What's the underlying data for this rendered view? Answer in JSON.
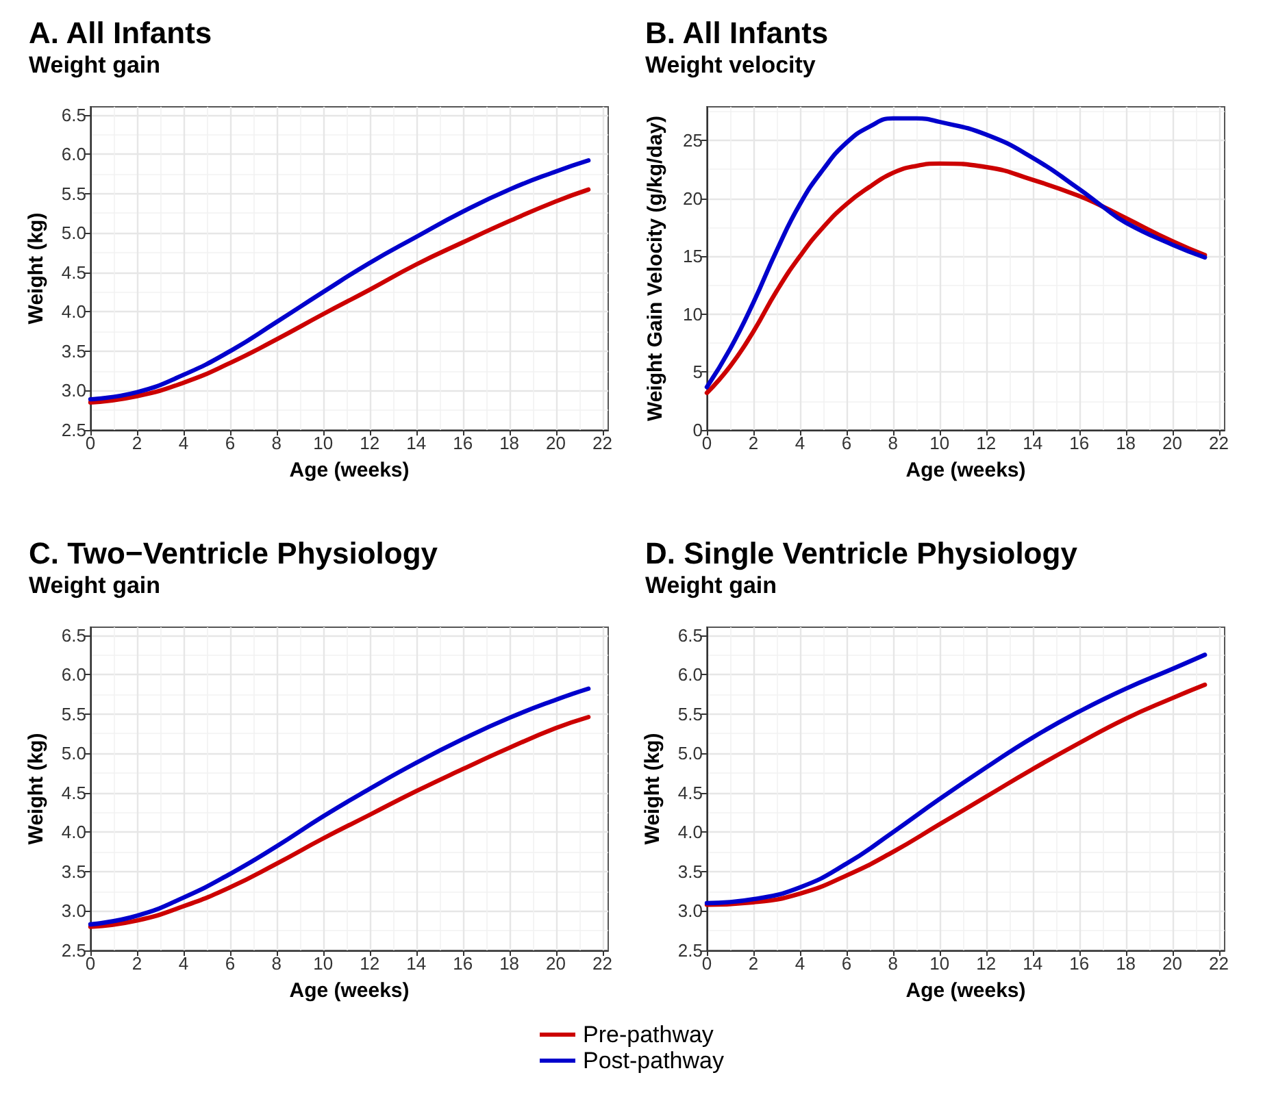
{
  "chart_data": [
    {
      "type": "line",
      "title": "A. All Infants",
      "subtitle": "Weight gain",
      "xlabel": "Age (weeks)",
      "ylabel": "Weight (kg)",
      "x": [
        0,
        2,
        4,
        6,
        8,
        10,
        12,
        14,
        16,
        18,
        20,
        21.4
      ],
      "xlim": [
        0,
        22.25
      ],
      "xticks": [
        0,
        2,
        4,
        6,
        8,
        10,
        12,
        14,
        16,
        18,
        20,
        22
      ],
      "ylim": [
        2.5,
        6.6
      ],
      "yticks": [
        2.5,
        {
          "value": 3,
          "label": "3.0"
        },
        3.5,
        {
          "value": 4,
          "label": "4.0"
        },
        4.5,
        {
          "value": 5,
          "label": "5.0"
        },
        5.5,
        {
          "value": 6,
          "label": "6.0"
        },
        6.5
      ],
      "grid": true,
      "legend": "bottom",
      "marker": "none",
      "line_style": "solid",
      "series": [
        {
          "name": "Pre-pathway",
          "color": "#cc0000",
          "values": [
            2.85,
            2.93,
            3.1,
            3.35,
            3.65,
            3.97,
            4.28,
            4.6,
            4.88,
            5.15,
            5.4,
            5.55
          ]
        },
        {
          "name": "Post-pathway",
          "color": "#0000cc",
          "values": [
            2.89,
            2.98,
            3.2,
            3.5,
            3.87,
            4.25,
            4.62,
            4.95,
            5.27,
            5.55,
            5.78,
            5.92
          ]
        }
      ]
    },
    {
      "type": "line",
      "title": "B. All Infants",
      "subtitle": "Weight velocity",
      "xlabel": "Age (weeks)",
      "ylabel": "Weight Gain Velocity (g/kg/day)",
      "x": [
        0,
        1,
        2,
        3,
        4,
        5,
        6,
        7,
        8,
        9,
        10,
        12,
        14,
        16,
        17,
        18,
        20,
        21.4
      ],
      "xlim": [
        0,
        22.25
      ],
      "xticks": [
        0,
        2,
        4,
        6,
        8,
        10,
        12,
        14,
        16,
        18,
        20,
        22
      ],
      "ylim": [
        0,
        27.9
      ],
      "yticks": [
        0,
        5,
        10,
        15,
        20,
        25
      ],
      "grid": true,
      "legend": "bottom",
      "marker": "none",
      "line_style": "solid",
      "series": [
        {
          "name": "Pre-pathway",
          "color": "#cc0000",
          "values": [
            3.2,
            5.5,
            8.5,
            12,
            15,
            17.5,
            19.5,
            21,
            22.2,
            22.8,
            23,
            22.7,
            21.6,
            20.2,
            19.3,
            18.3,
            16.3,
            15.1
          ]
        },
        {
          "name": "Post-pathway",
          "color": "#0000cc",
          "values": [
            3.7,
            7,
            11,
            15.5,
            19.5,
            22.5,
            24.8,
            26.2,
            26.9,
            26.9,
            26.6,
            25.5,
            23.5,
            20.8,
            19.3,
            17.9,
            16,
            14.9
          ]
        }
      ]
    },
    {
      "type": "line",
      "title": "C. Two−Ventricle Physiology",
      "subtitle": "Weight gain",
      "xlabel": "Age (weeks)",
      "ylabel": "Weight (kg)",
      "x": [
        0,
        2,
        4,
        6,
        8,
        10,
        12,
        14,
        16,
        18,
        20,
        21.4
      ],
      "xlim": [
        0,
        22.25
      ],
      "xticks": [
        0,
        2,
        4,
        6,
        8,
        10,
        12,
        14,
        16,
        18,
        20,
        22
      ],
      "ylim": [
        2.5,
        6.6
      ],
      "yticks": [
        2.5,
        {
          "value": 3,
          "label": "3.0"
        },
        3.5,
        {
          "value": 4,
          "label": "4.0"
        },
        4.5,
        {
          "value": 5,
          "label": "5.0"
        },
        5.5,
        {
          "value": 6,
          "label": "6.0"
        },
        6.5
      ],
      "grid": true,
      "legend": "bottom",
      "marker": "none",
      "line_style": "solid",
      "series": [
        {
          "name": "Pre-pathway",
          "color": "#cc0000",
          "values": [
            2.8,
            2.88,
            3.06,
            3.3,
            3.6,
            3.92,
            4.22,
            4.52,
            4.8,
            5.07,
            5.32,
            5.46
          ]
        },
        {
          "name": "Post-pathway",
          "color": "#0000cc",
          "values": [
            2.83,
            2.94,
            3.17,
            3.47,
            3.82,
            4.2,
            4.55,
            4.88,
            5.18,
            5.45,
            5.68,
            5.82
          ]
        }
      ]
    },
    {
      "type": "line",
      "title": "D. Single Ventricle Physiology",
      "subtitle": "Weight gain",
      "xlabel": "Age (weeks)",
      "ylabel": "Weight (kg)",
      "x": [
        0,
        2,
        4,
        6,
        8,
        10,
        12,
        14,
        16,
        18,
        20,
        21.4
      ],
      "xlim": [
        0,
        22.25
      ],
      "xticks": [
        0,
        2,
        4,
        6,
        8,
        10,
        12,
        14,
        16,
        18,
        20,
        22
      ],
      "ylim": [
        2.5,
        6.6
      ],
      "yticks": [
        2.5,
        {
          "value": 3,
          "label": "3.0"
        },
        3.5,
        {
          "value": 4,
          "label": "4.0"
        },
        4.5,
        {
          "value": 5,
          "label": "5.0"
        },
        5.5,
        {
          "value": 6,
          "label": "6.0"
        },
        6.5
      ],
      "grid": true,
      "legend": "bottom",
      "marker": "none",
      "line_style": "solid",
      "series": [
        {
          "name": "Pre-pathway",
          "color": "#cc0000",
          "values": [
            3.08,
            3.11,
            3.22,
            3.45,
            3.75,
            4.1,
            4.45,
            4.8,
            5.13,
            5.44,
            5.7,
            5.87
          ]
        },
        {
          "name": "Post-pathway",
          "color": "#0000cc",
          "values": [
            3.1,
            3.15,
            3.3,
            3.6,
            4.0,
            4.42,
            4.82,
            5.2,
            5.53,
            5.82,
            6.07,
            6.25
          ]
        }
      ]
    }
  ]
}
